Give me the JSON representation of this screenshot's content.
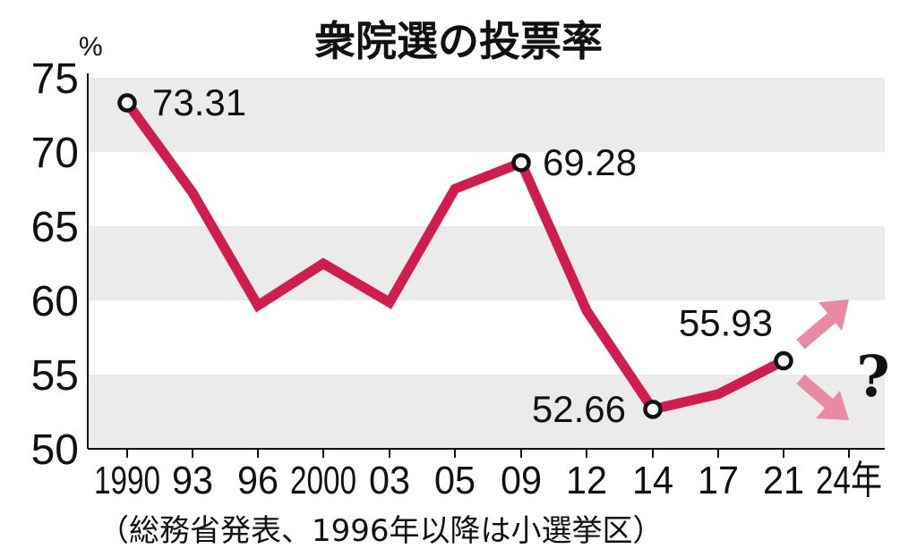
{
  "chart_data": {
    "type": "line",
    "title": "衆院選の投票率",
    "ylabel": "%",
    "ylim": [
      50,
      75
    ],
    "yticks": [
      50,
      55,
      60,
      65,
      70,
      75
    ],
    "grid": "alternating horizontal bands",
    "categories": [
      "1990",
      "93",
      "96",
      "2000",
      "03",
      "05",
      "09",
      "12",
      "14",
      "17",
      "21",
      "24年"
    ],
    "values": [
      73.31,
      67.26,
      59.65,
      62.49,
      59.86,
      67.51,
      69.28,
      59.32,
      52.66,
      53.68,
      55.93,
      null
    ],
    "data_labels": {
      "1990": "73.31",
      "09": "69.28",
      "14": "52.66",
      "21": "55.93"
    },
    "annotation": "?",
    "note": "（総務省発表、1996年以降は小選挙区）",
    "colors": {
      "line": "#d01c4f",
      "arrows": "#e88aa4",
      "band": "#ebebeb"
    }
  }
}
